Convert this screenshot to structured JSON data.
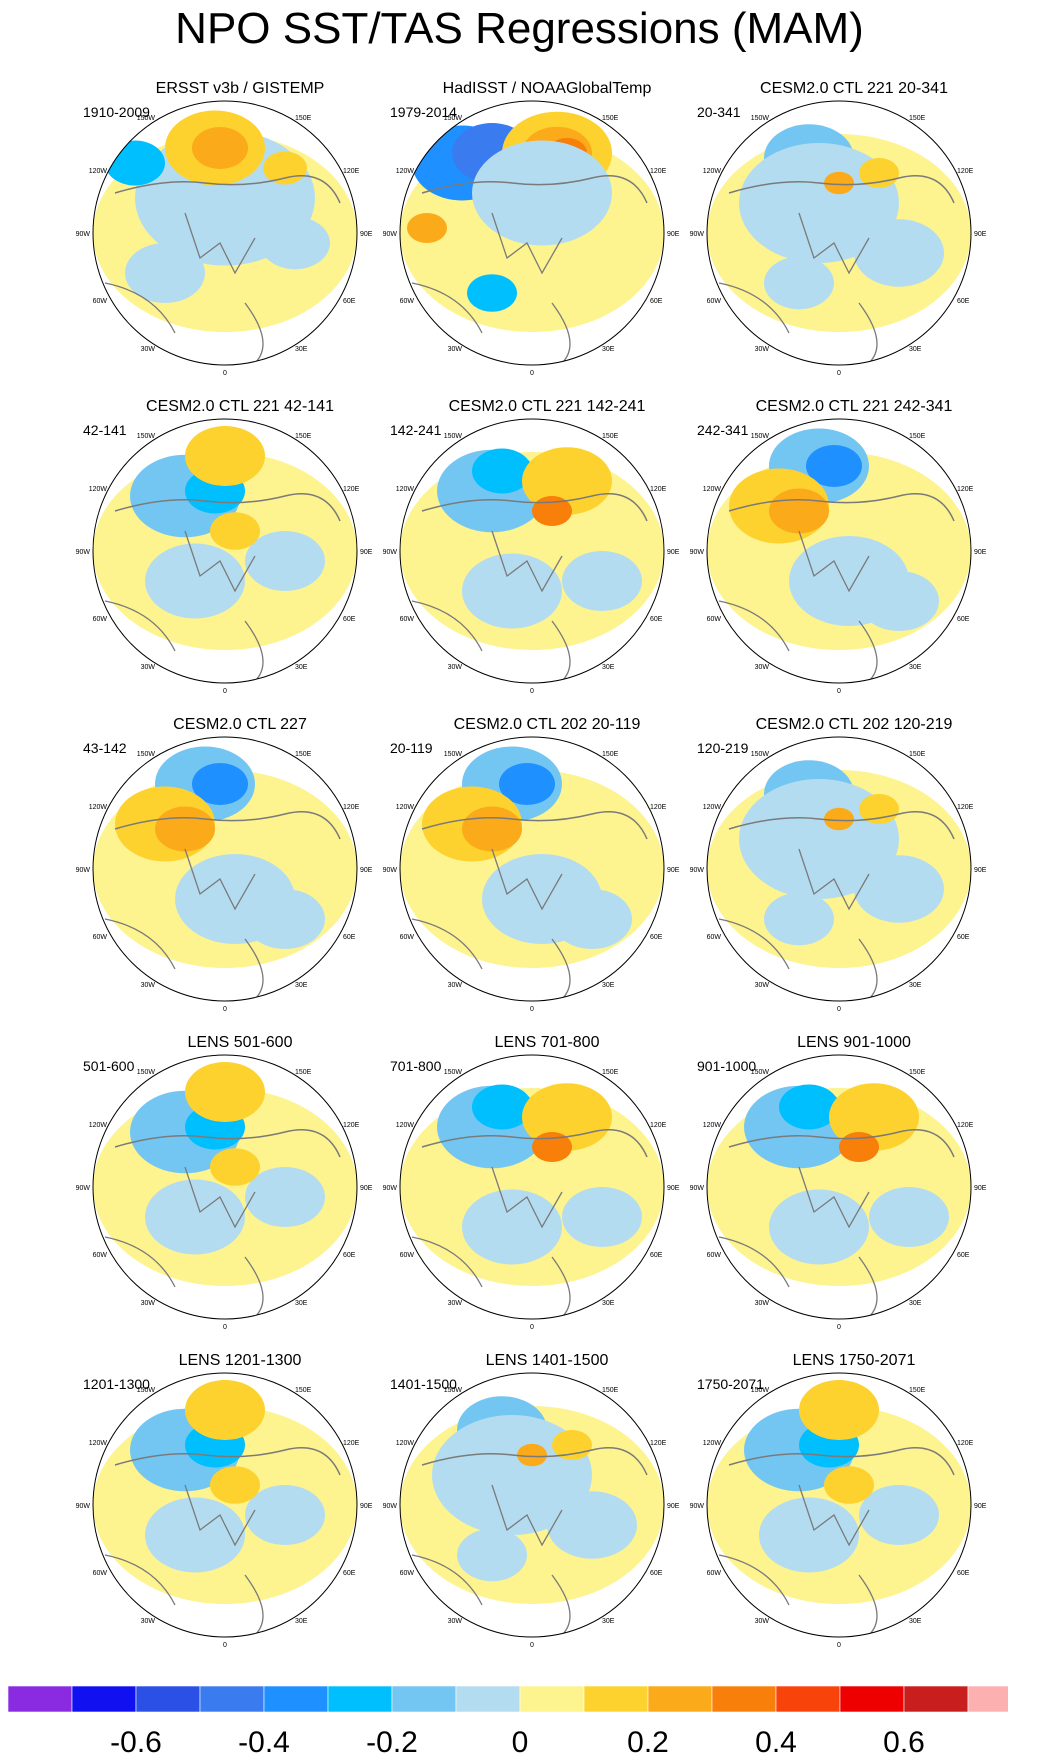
{
  "title": "NPO SST/TAS Regressions (MAM)",
  "panels": [
    {
      "title": "ERSST v3b / GISTEMP",
      "period": "1910-2009",
      "pattern": "obs1"
    },
    {
      "title": "HadISST / NOAAGlobalTemp",
      "period": "1979-2014",
      "pattern": "obs2"
    },
    {
      "title": "CESM2.0 CTL 221 20-341",
      "period": "20-341",
      "pattern": "weak"
    },
    {
      "title": "CESM2.0 CTL 221 42-141",
      "period": "42-141",
      "pattern": "a"
    },
    {
      "title": "CESM2.0 CTL 221 142-241",
      "period": "142-241",
      "pattern": "b"
    },
    {
      "title": "CESM2.0 CTL 221 242-341",
      "period": "242-341",
      "pattern": "c"
    },
    {
      "title": "CESM2.0 CTL 227",
      "period": "43-142",
      "pattern": "c"
    },
    {
      "title": "CESM2.0 CTL 202 20-119",
      "period": "20-119",
      "pattern": "c"
    },
    {
      "title": "CESM2.0 CTL 202 120-219",
      "period": "120-219",
      "pattern": "weak"
    },
    {
      "title": "LENS 501-600",
      "period": "501-600",
      "pattern": "a"
    },
    {
      "title": "LENS 701-800",
      "period": "701-800",
      "pattern": "b"
    },
    {
      "title": "LENS 901-1000",
      "period": "901-1000",
      "pattern": "b"
    },
    {
      "title": "LENS 1201-1300",
      "period": "1201-1300",
      "pattern": "a"
    },
    {
      "title": "LENS 1401-1500",
      "period": "1401-1500",
      "pattern": "weak"
    },
    {
      "title": "LENS 1750-2071",
      "period": "1750-2071",
      "pattern": "a"
    }
  ],
  "map_labels": {
    "top": "180",
    "tl": "150W",
    "tr": "150E",
    "ul": "120W",
    "ur": "120E",
    "ml": "90W",
    "mr": "90E",
    "ll": "60W",
    "lr": "60E",
    "bl": "30W",
    "br": "30E",
    "bottom": "0"
  },
  "colorbar": {
    "colors": [
      "#8a2be2",
      "#1010f0",
      "#2b50e6",
      "#3a7cf0",
      "#1e90ff",
      "#00bfff",
      "#74c6f2",
      "#b4dcf0",
      "#fdf38f",
      "#fdd22e",
      "#fbaa1a",
      "#f77f0a",
      "#f8430a",
      "#ee0000",
      "#c81e1e",
      "#fdb0b0"
    ],
    "ticks": [
      "-0.6",
      "-0.4",
      "-0.2",
      "0",
      "0.2",
      "0.4",
      "0.6"
    ],
    "tick_values": [
      -0.6,
      -0.4,
      -0.2,
      0,
      0.2,
      0.4,
      0.6
    ],
    "min": -0.8,
    "max": 0.8
  }
}
